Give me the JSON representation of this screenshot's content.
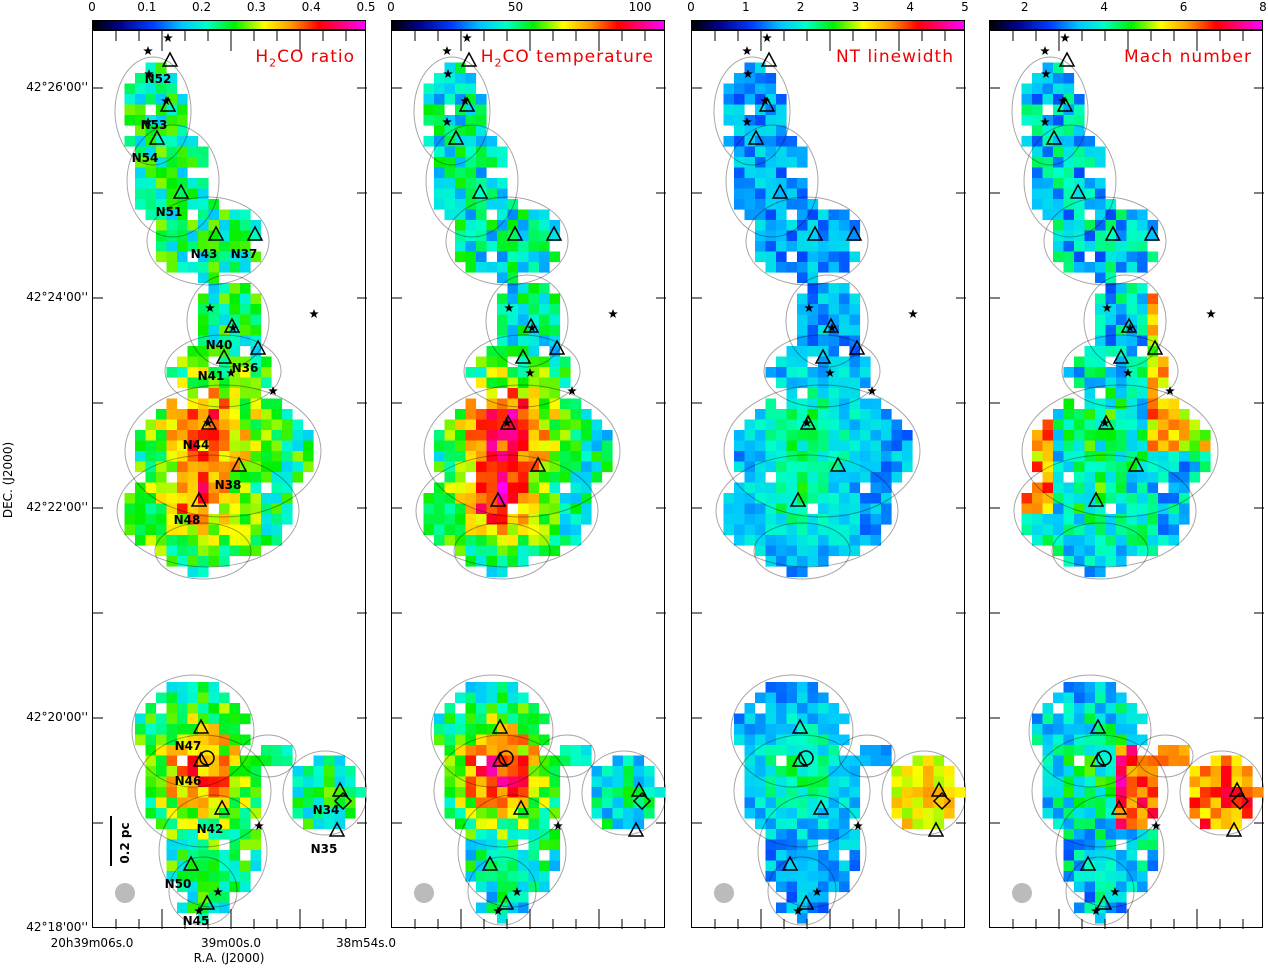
{
  "axes": {
    "ylabel": "DEC. (J2000)",
    "xlabel": "R.A. (J2000)",
    "yticks": [
      "42°26'00''",
      "42°24'00''",
      "42°22'00''",
      "42°20'00''",
      "42°18'00''"
    ],
    "xticks": [
      "20h39m06s.0",
      "39m00s.0",
      "38m54s.0"
    ],
    "xticks_parts": [
      [
        "20",
        "h",
        "39",
        "m",
        "06",
        "s",
        ".0"
      ],
      [
        "",
        "",
        "39",
        "m",
        "00",
        "s",
        ".0"
      ],
      [
        "",
        "",
        "38",
        "m",
        "54",
        "s",
        ".0"
      ]
    ]
  },
  "scalebar": "0.2 pc",
  "chart_data": [
    {
      "type": "heatmap",
      "title": "H2CO ratio",
      "title_main": "H",
      "title_sub": "2",
      "title_rest": "CO  ratio",
      "colorbar_ticks": [
        "0",
        "0.1",
        "0.2",
        "0.3",
        "0.4",
        "0.5"
      ],
      "range": [
        0,
        0.5
      ]
    },
    {
      "type": "heatmap",
      "title": "H2CO temperature",
      "title_main": "H",
      "title_sub": "2",
      "title_rest": "CO  temperature",
      "colorbar_ticks": [
        "0",
        "50",
        "100"
      ],
      "range": [
        0,
        110
      ]
    },
    {
      "type": "heatmap",
      "title": "NT linewidth",
      "title_main": "NT  linewidth",
      "title_sub": "",
      "title_rest": "",
      "colorbar_ticks": [
        "0",
        "1",
        "2",
        "3",
        "4",
        "5"
      ],
      "range": [
        0,
        5
      ]
    },
    {
      "type": "heatmap",
      "title": "Mach number",
      "title_main": "Mach  number",
      "title_sub": "",
      "title_rest": "",
      "colorbar_ticks": [
        "2",
        "4",
        "6",
        "8"
      ],
      "range": [
        1.1,
        8
      ]
    }
  ],
  "sources": [
    "N52",
    "N53",
    "N54",
    "N51",
    "N43",
    "N37",
    "N40",
    "N36",
    "N41",
    "N44",
    "N38",
    "N48",
    "N47",
    "N46",
    "N42",
    "N34",
    "N35",
    "N50",
    "N45"
  ],
  "colors": {
    "title": "#ee0000",
    "beam": "#bbbbbb"
  }
}
